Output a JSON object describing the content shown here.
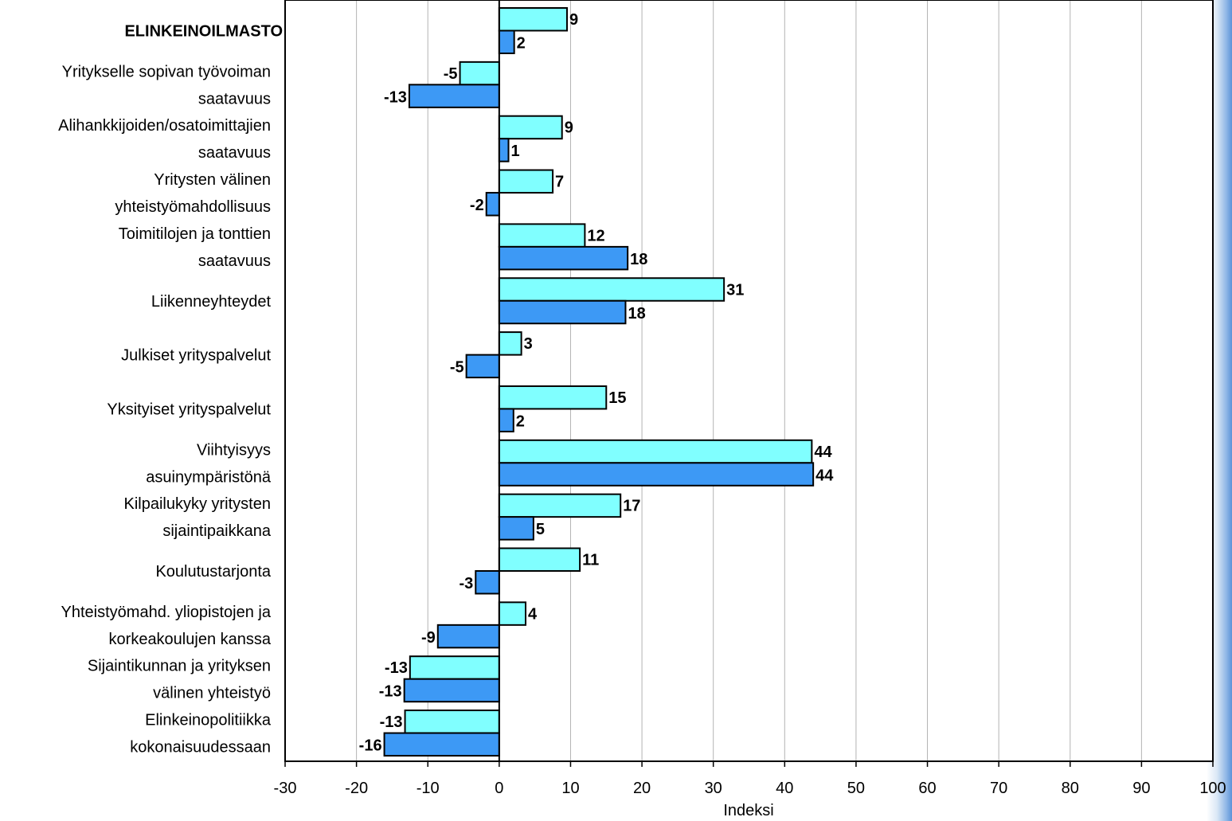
{
  "chart_data": {
    "type": "bar",
    "orientation": "horizontal",
    "title": "",
    "xlabel": "Indeksi",
    "ylabel": "",
    "xlim": [
      -30,
      100
    ],
    "xticks": [
      "-30",
      "-20",
      "-10",
      "0",
      "10",
      "20",
      "30",
      "40",
      "50",
      "60",
      "70",
      "80",
      "90",
      "100"
    ],
    "grid": "vertical",
    "legend": "none",
    "colors": {
      "series1": "#80ffff",
      "series2": "#3d99f5",
      "border": "#000000",
      "grid": "#b3b3b3"
    },
    "categories": [
      {
        "lines": [
          "ELINKEINOILMASTO"
        ],
        "bold": true
      },
      {
        "lines": [
          "Yritykselle sopivan työvoiman",
          "saatavuus"
        ]
      },
      {
        "lines": [
          "Alihankkijoiden/osatoimittajien",
          "saatavuus"
        ]
      },
      {
        "lines": [
          "Yritysten välinen",
          "yhteistyömahdollisuus"
        ]
      },
      {
        "lines": [
          "Toimitilojen ja tonttien",
          "saatavuus"
        ]
      },
      {
        "lines": [
          "Liikenneyhteydet"
        ]
      },
      {
        "lines": [
          "Julkiset yrityspalvelut"
        ]
      },
      {
        "lines": [
          "Yksityiset yrityspalvelut"
        ]
      },
      {
        "lines": [
          "Viihtyisyys",
          "asuinympäristönä"
        ]
      },
      {
        "lines": [
          "Kilpailukyky yritysten",
          "sijaintipaikkana"
        ]
      },
      {
        "lines": [
          "Koulutustarjonta"
        ]
      },
      {
        "lines": [
          "Yhteistyömahd. yliopistojen ja",
          "korkeakoulujen kanssa"
        ]
      },
      {
        "lines": [
          "Sijaintikunnan ja yrityksen",
          "välinen yhteistyö"
        ]
      },
      {
        "lines": [
          "Elinkeinopolitiikka",
          "kokonaisuudessaan"
        ]
      }
    ],
    "series": [
      {
        "color": "#80ffff",
        "values": [
          9.5,
          -5.5,
          8.8,
          7.5,
          12,
          31.5,
          3.1,
          15,
          43.8,
          17,
          11.3,
          3.7,
          -12.5,
          -13.2
        ],
        "labels": [
          "9",
          "-5",
          "9",
          "7",
          "12",
          "31",
          "3",
          "15",
          "44",
          "17",
          "11",
          "4",
          "-13",
          "-13"
        ]
      },
      {
        "color": "#3d99f5",
        "values": [
          2.1,
          -12.6,
          1.3,
          -1.8,
          18,
          17.7,
          -4.6,
          2,
          44,
          4.8,
          -3.3,
          -8.6,
          -13.3,
          -16.1
        ],
        "labels": [
          "2",
          "-13",
          "1",
          "-2",
          "18",
          "18",
          "-5",
          "2",
          "44",
          "5",
          "-3",
          "-9",
          "-13",
          "-16"
        ]
      }
    ]
  }
}
